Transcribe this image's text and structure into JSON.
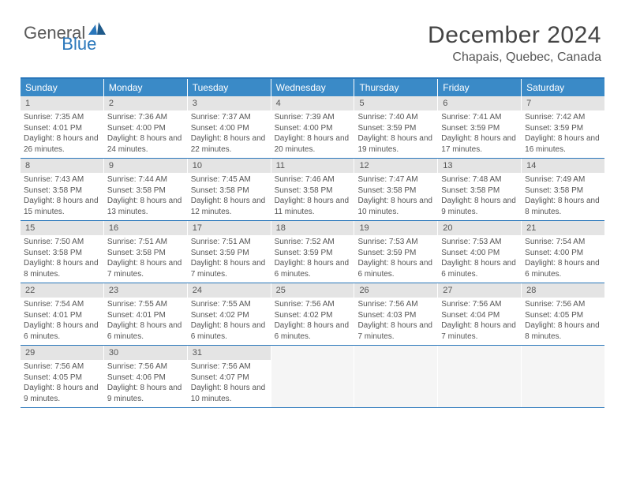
{
  "logo": {
    "text_general": "General",
    "text_blue": "Blue",
    "icon_color": "#2a77bb"
  },
  "title": "December 2024",
  "location": "Chapais, Quebec, Canada",
  "colors": {
    "header_bar": "#3a8ac7",
    "header_border": "#2a77bb",
    "daynum_bg": "#e4e4e4",
    "text": "#555555"
  },
  "weekdays": [
    "Sunday",
    "Monday",
    "Tuesday",
    "Wednesday",
    "Thursday",
    "Friday",
    "Saturday"
  ],
  "weeks": [
    [
      {
        "n": "1",
        "sr": "Sunrise: 7:35 AM",
        "ss": "Sunset: 4:01 PM",
        "dl": "Daylight: 8 hours and 26 minutes."
      },
      {
        "n": "2",
        "sr": "Sunrise: 7:36 AM",
        "ss": "Sunset: 4:00 PM",
        "dl": "Daylight: 8 hours and 24 minutes."
      },
      {
        "n": "3",
        "sr": "Sunrise: 7:37 AM",
        "ss": "Sunset: 4:00 PM",
        "dl": "Daylight: 8 hours and 22 minutes."
      },
      {
        "n": "4",
        "sr": "Sunrise: 7:39 AM",
        "ss": "Sunset: 4:00 PM",
        "dl": "Daylight: 8 hours and 20 minutes."
      },
      {
        "n": "5",
        "sr": "Sunrise: 7:40 AM",
        "ss": "Sunset: 3:59 PM",
        "dl": "Daylight: 8 hours and 19 minutes."
      },
      {
        "n": "6",
        "sr": "Sunrise: 7:41 AM",
        "ss": "Sunset: 3:59 PM",
        "dl": "Daylight: 8 hours and 17 minutes."
      },
      {
        "n": "7",
        "sr": "Sunrise: 7:42 AM",
        "ss": "Sunset: 3:59 PM",
        "dl": "Daylight: 8 hours and 16 minutes."
      }
    ],
    [
      {
        "n": "8",
        "sr": "Sunrise: 7:43 AM",
        "ss": "Sunset: 3:58 PM",
        "dl": "Daylight: 8 hours and 15 minutes."
      },
      {
        "n": "9",
        "sr": "Sunrise: 7:44 AM",
        "ss": "Sunset: 3:58 PM",
        "dl": "Daylight: 8 hours and 13 minutes."
      },
      {
        "n": "10",
        "sr": "Sunrise: 7:45 AM",
        "ss": "Sunset: 3:58 PM",
        "dl": "Daylight: 8 hours and 12 minutes."
      },
      {
        "n": "11",
        "sr": "Sunrise: 7:46 AM",
        "ss": "Sunset: 3:58 PM",
        "dl": "Daylight: 8 hours and 11 minutes."
      },
      {
        "n": "12",
        "sr": "Sunrise: 7:47 AM",
        "ss": "Sunset: 3:58 PM",
        "dl": "Daylight: 8 hours and 10 minutes."
      },
      {
        "n": "13",
        "sr": "Sunrise: 7:48 AM",
        "ss": "Sunset: 3:58 PM",
        "dl": "Daylight: 8 hours and 9 minutes."
      },
      {
        "n": "14",
        "sr": "Sunrise: 7:49 AM",
        "ss": "Sunset: 3:58 PM",
        "dl": "Daylight: 8 hours and 8 minutes."
      }
    ],
    [
      {
        "n": "15",
        "sr": "Sunrise: 7:50 AM",
        "ss": "Sunset: 3:58 PM",
        "dl": "Daylight: 8 hours and 8 minutes."
      },
      {
        "n": "16",
        "sr": "Sunrise: 7:51 AM",
        "ss": "Sunset: 3:58 PM",
        "dl": "Daylight: 8 hours and 7 minutes."
      },
      {
        "n": "17",
        "sr": "Sunrise: 7:51 AM",
        "ss": "Sunset: 3:59 PM",
        "dl": "Daylight: 8 hours and 7 minutes."
      },
      {
        "n": "18",
        "sr": "Sunrise: 7:52 AM",
        "ss": "Sunset: 3:59 PM",
        "dl": "Daylight: 8 hours and 6 minutes."
      },
      {
        "n": "19",
        "sr": "Sunrise: 7:53 AM",
        "ss": "Sunset: 3:59 PM",
        "dl": "Daylight: 8 hours and 6 minutes."
      },
      {
        "n": "20",
        "sr": "Sunrise: 7:53 AM",
        "ss": "Sunset: 4:00 PM",
        "dl": "Daylight: 8 hours and 6 minutes."
      },
      {
        "n": "21",
        "sr": "Sunrise: 7:54 AM",
        "ss": "Sunset: 4:00 PM",
        "dl": "Daylight: 8 hours and 6 minutes."
      }
    ],
    [
      {
        "n": "22",
        "sr": "Sunrise: 7:54 AM",
        "ss": "Sunset: 4:01 PM",
        "dl": "Daylight: 8 hours and 6 minutes."
      },
      {
        "n": "23",
        "sr": "Sunrise: 7:55 AM",
        "ss": "Sunset: 4:01 PM",
        "dl": "Daylight: 8 hours and 6 minutes."
      },
      {
        "n": "24",
        "sr": "Sunrise: 7:55 AM",
        "ss": "Sunset: 4:02 PM",
        "dl": "Daylight: 8 hours and 6 minutes."
      },
      {
        "n": "25",
        "sr": "Sunrise: 7:56 AM",
        "ss": "Sunset: 4:02 PM",
        "dl": "Daylight: 8 hours and 6 minutes."
      },
      {
        "n": "26",
        "sr": "Sunrise: 7:56 AM",
        "ss": "Sunset: 4:03 PM",
        "dl": "Daylight: 8 hours and 7 minutes."
      },
      {
        "n": "27",
        "sr": "Sunrise: 7:56 AM",
        "ss": "Sunset: 4:04 PM",
        "dl": "Daylight: 8 hours and 7 minutes."
      },
      {
        "n": "28",
        "sr": "Sunrise: 7:56 AM",
        "ss": "Sunset: 4:05 PM",
        "dl": "Daylight: 8 hours and 8 minutes."
      }
    ],
    [
      {
        "n": "29",
        "sr": "Sunrise: 7:56 AM",
        "ss": "Sunset: 4:05 PM",
        "dl": "Daylight: 8 hours and 9 minutes."
      },
      {
        "n": "30",
        "sr": "Sunrise: 7:56 AM",
        "ss": "Sunset: 4:06 PM",
        "dl": "Daylight: 8 hours and 9 minutes."
      },
      {
        "n": "31",
        "sr": "Sunrise: 7:56 AM",
        "ss": "Sunset: 4:07 PM",
        "dl": "Daylight: 8 hours and 10 minutes."
      },
      null,
      null,
      null,
      null
    ]
  ]
}
